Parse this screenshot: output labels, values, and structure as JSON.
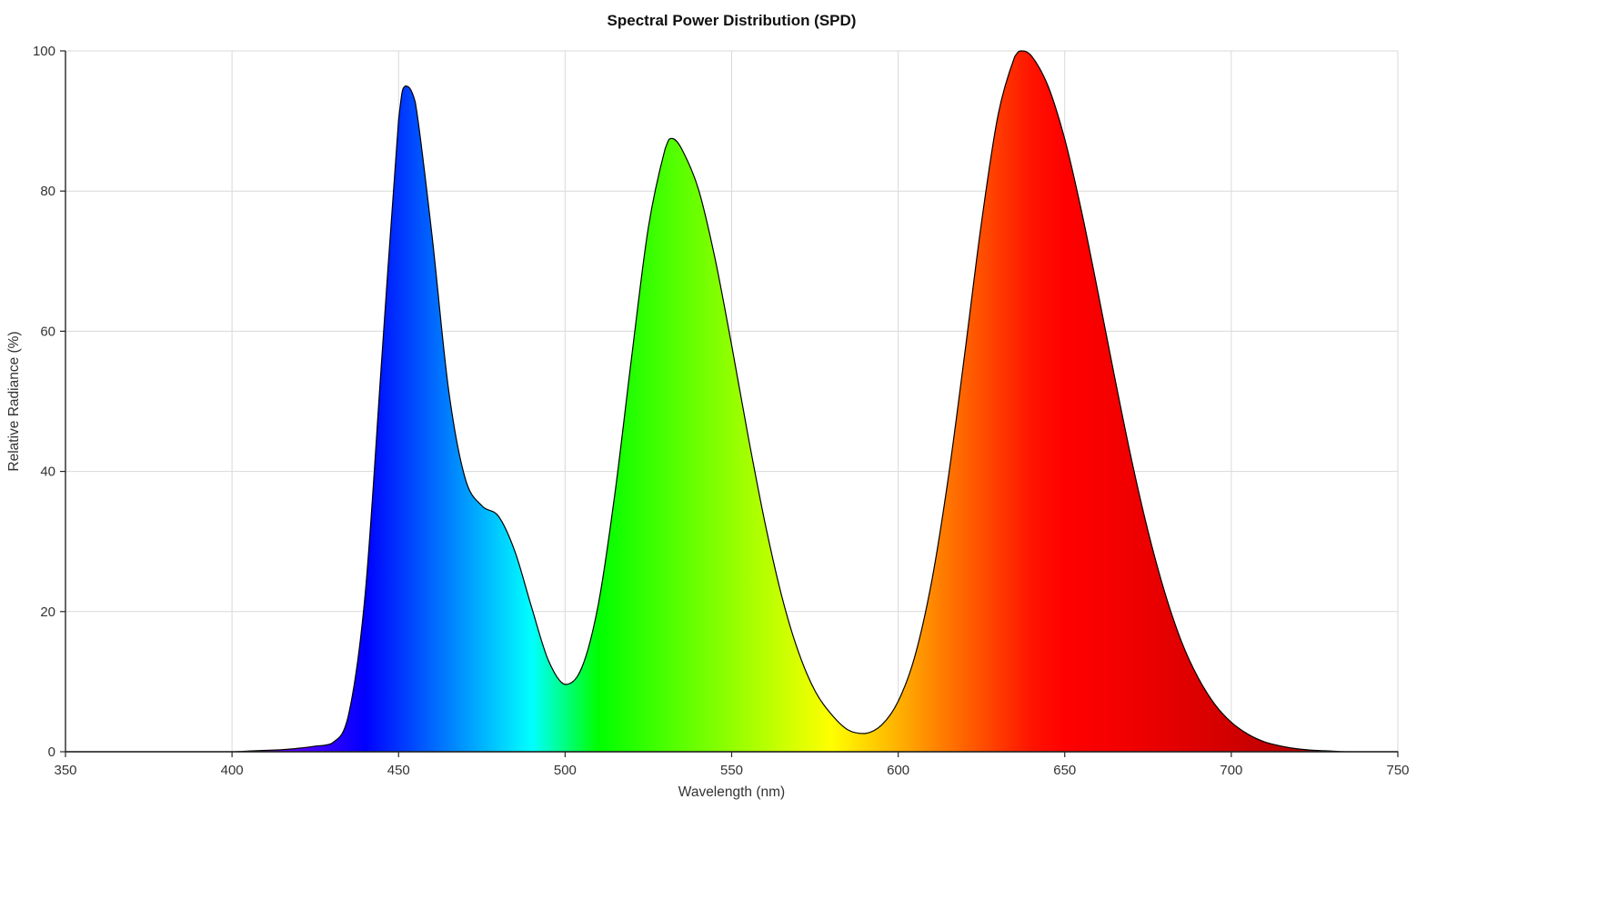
{
  "chart_data": {
    "type": "area",
    "title": "Spectral Power Distribution (SPD)",
    "xlabel": "Wavelength (nm)",
    "ylabel": "Relative Radiance (%)",
    "xlim": [
      350,
      750
    ],
    "ylim": [
      0,
      100
    ],
    "x_ticks": [
      350,
      400,
      450,
      500,
      550,
      600,
      650,
      700,
      750
    ],
    "y_ticks": [
      0,
      20,
      40,
      60,
      80,
      100
    ],
    "grid": true,
    "legend": false,
    "series": [
      {
        "name": "SPD",
        "x": [
          350,
          355,
          360,
          365,
          370,
          375,
          380,
          385,
          390,
          395,
          400,
          405,
          410,
          415,
          420,
          425,
          430,
          435,
          440,
          445,
          450,
          452,
          455,
          460,
          465,
          470,
          475,
          480,
          485,
          490,
          495,
          500,
          505,
          510,
          515,
          520,
          525,
          530,
          532,
          535,
          540,
          545,
          550,
          555,
          560,
          565,
          570,
          575,
          580,
          585,
          590,
          595,
          600,
          605,
          610,
          615,
          620,
          625,
          630,
          635,
          637,
          640,
          645,
          650,
          655,
          660,
          665,
          670,
          675,
          680,
          685,
          690,
          695,
          700,
          705,
          710,
          715,
          720,
          725,
          730,
          735,
          740,
          745,
          750
        ],
        "y": [
          0,
          0,
          0,
          0,
          0,
          0,
          0,
          0,
          0,
          0,
          0,
          0.1,
          0.2,
          0.3,
          0.5,
          0.8,
          1.2,
          5.3,
          22.6,
          56.3,
          90.2,
          95,
          92.7,
          73.8,
          51.7,
          39,
          35.1,
          33.6,
          28.5,
          20.5,
          13,
          9.6,
          12,
          21.1,
          37,
          56.4,
          74.8,
          86,
          87.5,
          86,
          80.3,
          70.4,
          58,
          44.9,
          32.7,
          22.3,
          14.3,
          8.7,
          5.3,
          3.1,
          2.6,
          3.8,
          7.2,
          13.6,
          24.2,
          39,
          56.9,
          75.5,
          90.9,
          99.2,
          100,
          99.3,
          95,
          87.4,
          77.2,
          65.5,
          53.4,
          41.8,
          31.5,
          22.8,
          15.8,
          10.6,
          6.8,
          4.2,
          2.5,
          1.4,
          0.8,
          0.4,
          0.2,
          0.1,
          0,
          0,
          0,
          0
        ],
        "stroke": "#000000"
      }
    ],
    "peaks": [
      {
        "nm": 452,
        "value": 95
      },
      {
        "nm": 532,
        "value": 87.5
      },
      {
        "nm": 637,
        "value": 100
      }
    ],
    "valleys": [
      {
        "nm": 500,
        "value": 9.6
      },
      {
        "nm": 590,
        "value": 2.6
      }
    ],
    "spectrum_stops": [
      {
        "nm": 400,
        "color": "#6E00A6"
      },
      {
        "nm": 410,
        "color": "#6900D2"
      },
      {
        "nm": 420,
        "color": "#5500FF"
      },
      {
        "nm": 430,
        "color": "#2B00FF"
      },
      {
        "nm": 440,
        "color": "#0000FF"
      },
      {
        "nm": 450,
        "color": "#0033FF"
      },
      {
        "nm": 460,
        "color": "#0066FF"
      },
      {
        "nm": 470,
        "color": "#0099FF"
      },
      {
        "nm": 480,
        "color": "#00CCFF"
      },
      {
        "nm": 490,
        "color": "#00FFFF"
      },
      {
        "nm": 500,
        "color": "#00FF80"
      },
      {
        "nm": 510,
        "color": "#00FF00"
      },
      {
        "nm": 520,
        "color": "#24FF00"
      },
      {
        "nm": 530,
        "color": "#49FF00"
      },
      {
        "nm": 540,
        "color": "#6DFF00"
      },
      {
        "nm": 550,
        "color": "#92FF00"
      },
      {
        "nm": 560,
        "color": "#B6FF00"
      },
      {
        "nm": 570,
        "color": "#DBFF00"
      },
      {
        "nm": 580,
        "color": "#FFFF00"
      },
      {
        "nm": 590,
        "color": "#FFD800"
      },
      {
        "nm": 600,
        "color": "#FFB100"
      },
      {
        "nm": 610,
        "color": "#FF8900"
      },
      {
        "nm": 620,
        "color": "#FF6200"
      },
      {
        "nm": 630,
        "color": "#FF3B00"
      },
      {
        "nm": 640,
        "color": "#FF1400"
      },
      {
        "nm": 650,
        "color": "#FF0000"
      },
      {
        "nm": 660,
        "color": "#F80000"
      },
      {
        "nm": 670,
        "color": "#F00000"
      },
      {
        "nm": 680,
        "color": "#E60000"
      },
      {
        "nm": 690,
        "color": "#DC0000"
      },
      {
        "nm": 700,
        "color": "#D20000"
      },
      {
        "nm": 710,
        "color": "#C30000"
      },
      {
        "nm": 720,
        "color": "#B40000"
      },
      {
        "nm": 730,
        "color": "#A50000"
      },
      {
        "nm": 740,
        "color": "#960000"
      },
      {
        "nm": 750,
        "color": "#8C0000"
      }
    ]
  },
  "colors": {
    "background": "#ffffff",
    "grid": "#d9d9d9",
    "axis": "#262626",
    "curve_stroke": "#000000",
    "text": "#333333"
  }
}
